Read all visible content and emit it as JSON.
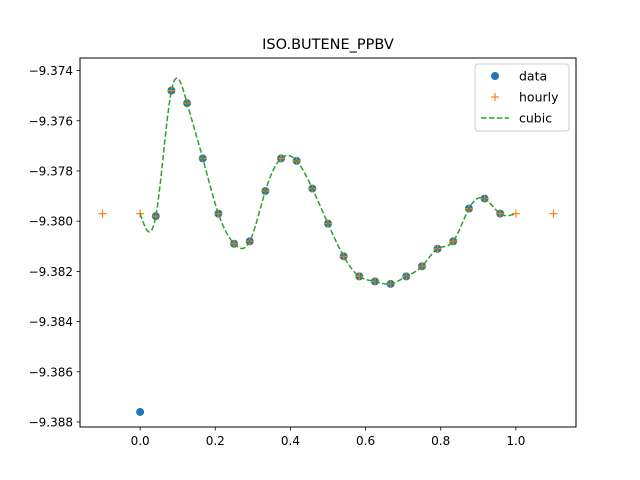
{
  "chart_data": {
    "type": "line",
    "title": "ISO.BUTENE_PPBV",
    "xlabel": "",
    "ylabel": "",
    "xlim": [
      -0.16,
      1.16
    ],
    "ylim": [
      -9.3882,
      -9.3735
    ],
    "x_ticks": [
      0.0,
      0.2,
      0.4,
      0.6,
      0.8,
      1.0
    ],
    "x_tick_labels": [
      "0.0",
      "0.2",
      "0.4",
      "0.6",
      "0.8",
      "1.0"
    ],
    "y_ticks": [
      -9.388,
      -9.386,
      -9.384,
      -9.382,
      -9.38,
      -9.378,
      -9.376,
      -9.374
    ],
    "y_tick_labels": [
      "−9.388",
      "−9.386",
      "−9.384",
      "−9.382",
      "−9.380",
      "−9.378",
      "−9.376",
      "−9.374"
    ],
    "grid": false,
    "legend_position": "top-right",
    "series": [
      {
        "name": "data",
        "style": "markers-circle",
        "color": "#1f77b4",
        "x": [
          0.0,
          0.0417,
          0.0833,
          0.125,
          0.1667,
          0.2083,
          0.25,
          0.2917,
          0.3333,
          0.375,
          0.4167,
          0.4583,
          0.5,
          0.5417,
          0.5833,
          0.625,
          0.6667,
          0.7083,
          0.75,
          0.7917,
          0.8333,
          0.875,
          0.9167,
          0.9583
        ],
        "y": [
          -9.3876,
          -9.3798,
          -9.3748,
          -9.3753,
          -9.3775,
          -9.3797,
          -9.3809,
          -9.3808,
          -9.3788,
          -9.3775,
          -9.3776,
          -9.3787,
          -9.3801,
          -9.3814,
          -9.3822,
          -9.3824,
          -9.3825,
          -9.3822,
          -9.3818,
          -9.3811,
          -9.3808,
          -9.3795,
          -9.3791,
          -9.3797
        ]
      },
      {
        "name": "hourly",
        "style": "markers-plus",
        "color": "#ff7f0e",
        "x": [
          -0.1,
          0.0,
          0.0417,
          0.0833,
          0.125,
          0.1667,
          0.2083,
          0.25,
          0.2917,
          0.3333,
          0.375,
          0.4167,
          0.4583,
          0.5,
          0.5417,
          0.5833,
          0.625,
          0.6667,
          0.7083,
          0.75,
          0.7917,
          0.8333,
          0.875,
          0.9167,
          0.9583,
          1.0,
          1.1
        ],
        "y": [
          -9.3797,
          -9.3797,
          -9.3798,
          -9.3748,
          -9.3753,
          -9.3775,
          -9.3797,
          -9.3809,
          -9.3808,
          -9.3788,
          -9.3775,
          -9.3776,
          -9.3787,
          -9.3801,
          -9.3814,
          -9.3822,
          -9.3824,
          -9.3825,
          -9.3822,
          -9.3818,
          -9.3811,
          -9.3808,
          -9.3795,
          -9.3791,
          -9.3797,
          -9.3797,
          -9.3797
        ]
      },
      {
        "name": "cubic",
        "style": "dashed-line",
        "color": "#2ca02c",
        "x": [
          0.0,
          0.0417,
          0.0833,
          0.125,
          0.1667,
          0.2083,
          0.25,
          0.2917,
          0.3333,
          0.375,
          0.4167,
          0.4583,
          0.5,
          0.5417,
          0.5833,
          0.625,
          0.6667,
          0.7083,
          0.75,
          0.7917,
          0.8333,
          0.875,
          0.9167,
          0.9583,
          1.0
        ],
        "y": [
          -9.3797,
          -9.3798,
          -9.3748,
          -9.3753,
          -9.3775,
          -9.3797,
          -9.3809,
          -9.3808,
          -9.3788,
          -9.3775,
          -9.3776,
          -9.3787,
          -9.3801,
          -9.3814,
          -9.3822,
          -9.3824,
          -9.3825,
          -9.3822,
          -9.3818,
          -9.3811,
          -9.3808,
          -9.3795,
          -9.3791,
          -9.3797,
          -9.3797
        ]
      }
    ]
  }
}
